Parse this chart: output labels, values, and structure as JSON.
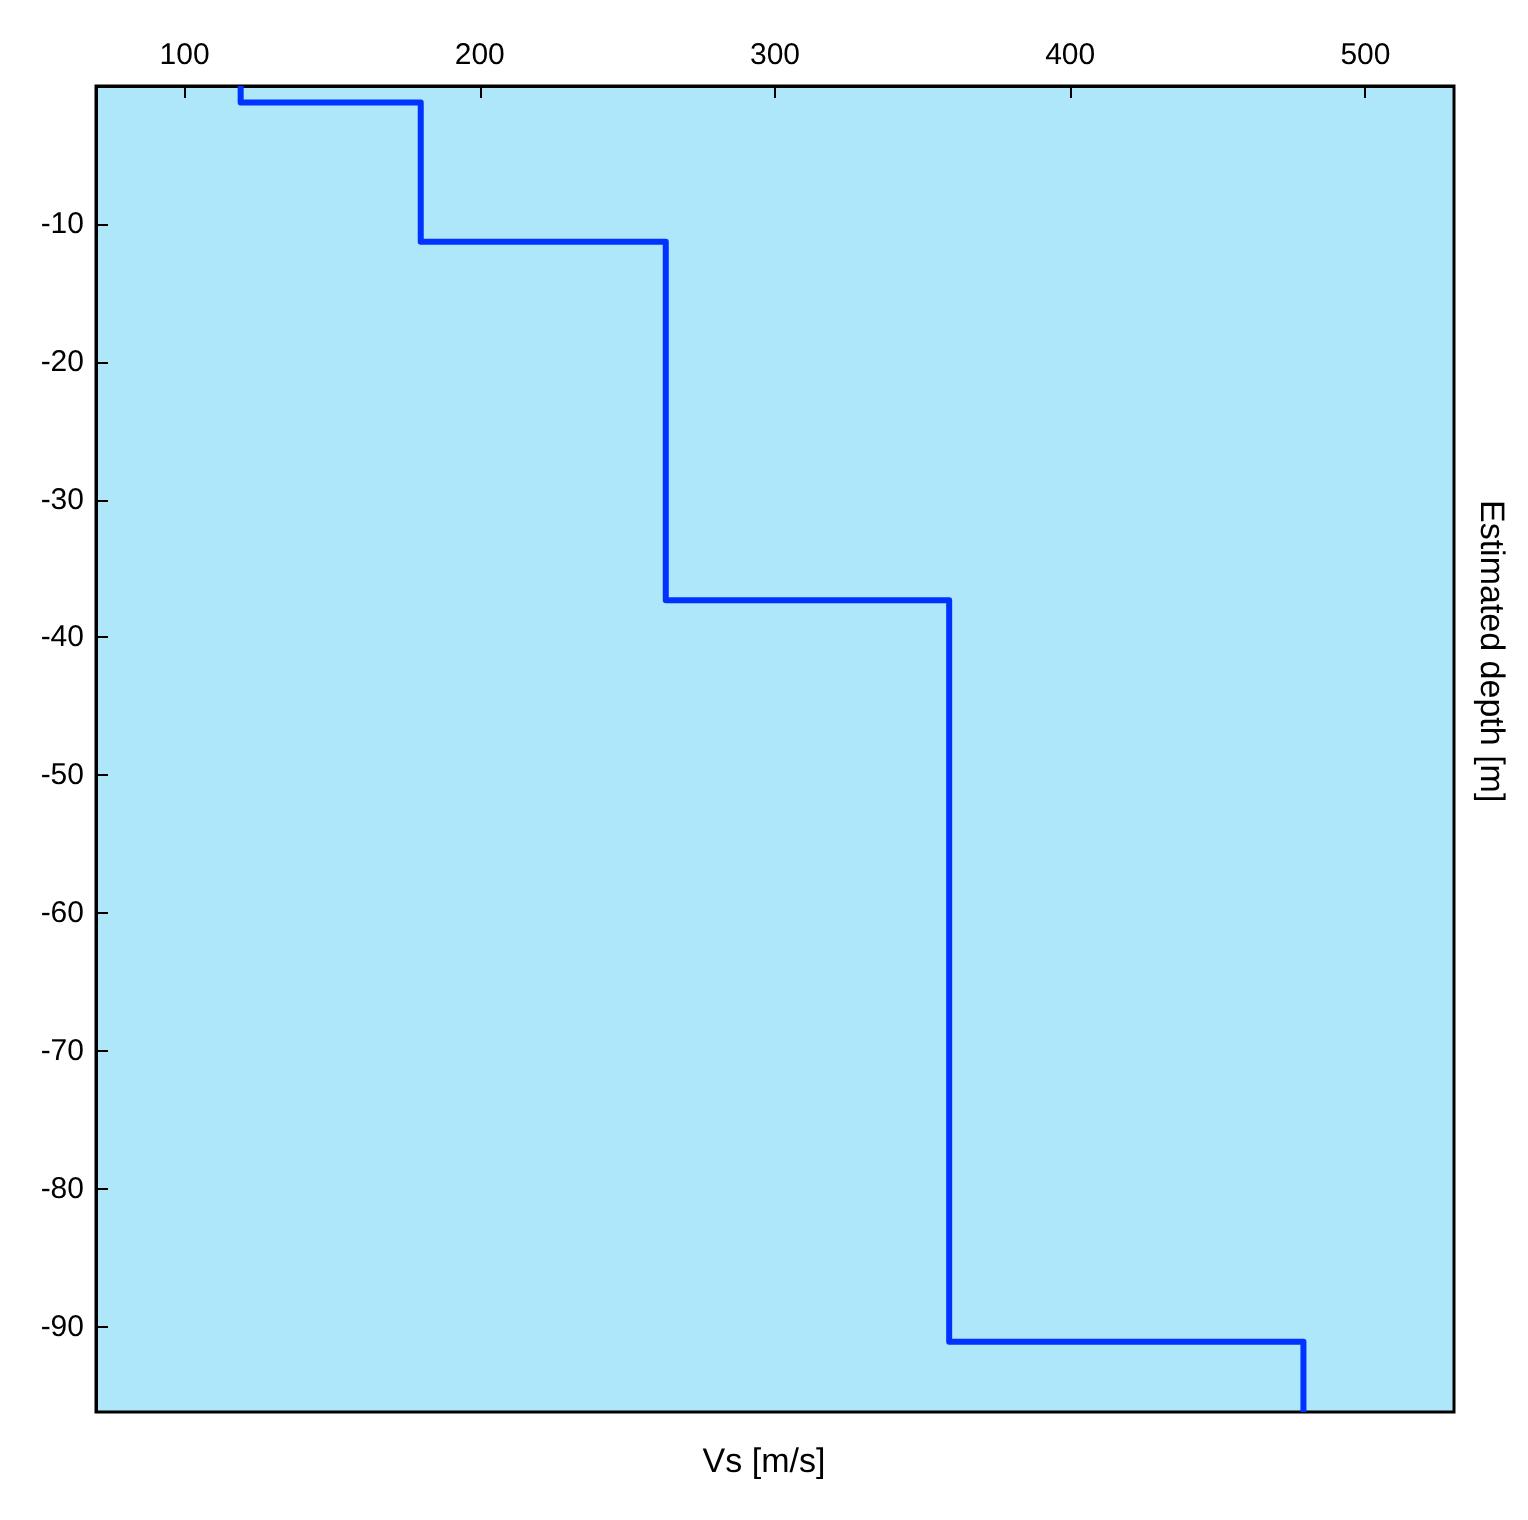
{
  "chart_data": {
    "type": "line",
    "xlabel": "Vs [m/s]",
    "ylabel": "Estimated depth [m]",
    "xlim": [
      70,
      530
    ],
    "xticks": [
      100,
      200,
      300,
      400,
      500
    ],
    "ylim": [
      -96.2,
      0
    ],
    "yticks": [
      -10,
      -20,
      -30,
      -40,
      -50,
      -60,
      -70,
      -80,
      -90
    ],
    "grid": false,
    "marker": "none",
    "line_style": "solid",
    "series": [
      {
        "color": "#0033ff",
        "x": [
          119,
          119,
          180,
          180,
          263,
          263,
          359,
          359,
          479,
          479
        ],
        "values": [
          0,
          -1.2,
          -1.2,
          -11.3,
          -11.3,
          -37.3,
          -37.3,
          -91.1,
          -91.1,
          -96.2
        ]
      }
    ]
  }
}
